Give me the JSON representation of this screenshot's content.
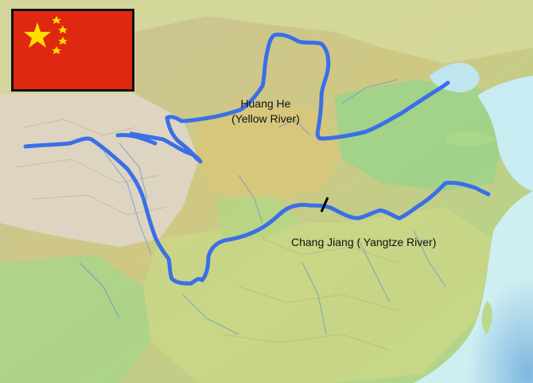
{
  "flag": {
    "name": "China",
    "color_red": "#DE2910",
    "color_star": "#FFDE00"
  },
  "rivers": [
    {
      "label_line1": "Huang He",
      "label_line2": "(Yellow River)",
      "color": "#3b6fe8"
    },
    {
      "label": "Chang Jiang ( Yangtze River)",
      "color": "#3b6fe8"
    }
  ],
  "colors": {
    "sea": "#cfe9ef",
    "lowland": "#9fd38a",
    "plateau": "#d9d2b8",
    "hills": "#d8c77e"
  }
}
